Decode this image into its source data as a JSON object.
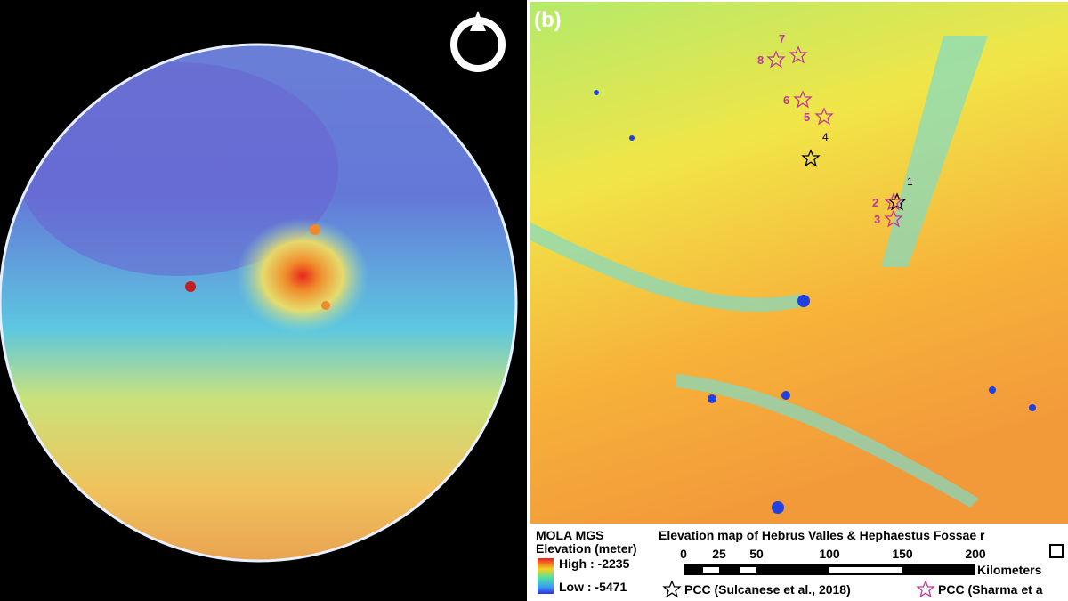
{
  "panel_b": {
    "label": "(b)",
    "sites": [
      {
        "label": "1"
      },
      {
        "label": "2"
      },
      {
        "label": "3"
      },
      {
        "label": "4"
      },
      {
        "label": "5"
      },
      {
        "label": "6"
      },
      {
        "label": "7"
      },
      {
        "label": "8"
      }
    ]
  },
  "legend": {
    "dataset": "MOLA MGS",
    "unit": "Elevation (meter)",
    "high": "High : -2235",
    "low": "Low : -5471",
    "title": "Elevation map of Hebrus Valles & Hephaestus Fossae r",
    "scale_ticks": [
      "0",
      "25",
      "50",
      "100",
      "150",
      "200"
    ],
    "scale_unit": "Kilometers",
    "pcc_black": "PCC (Sulcanese et al., 2018)",
    "pcc_pink": "PCC (Sharma et a"
  }
}
